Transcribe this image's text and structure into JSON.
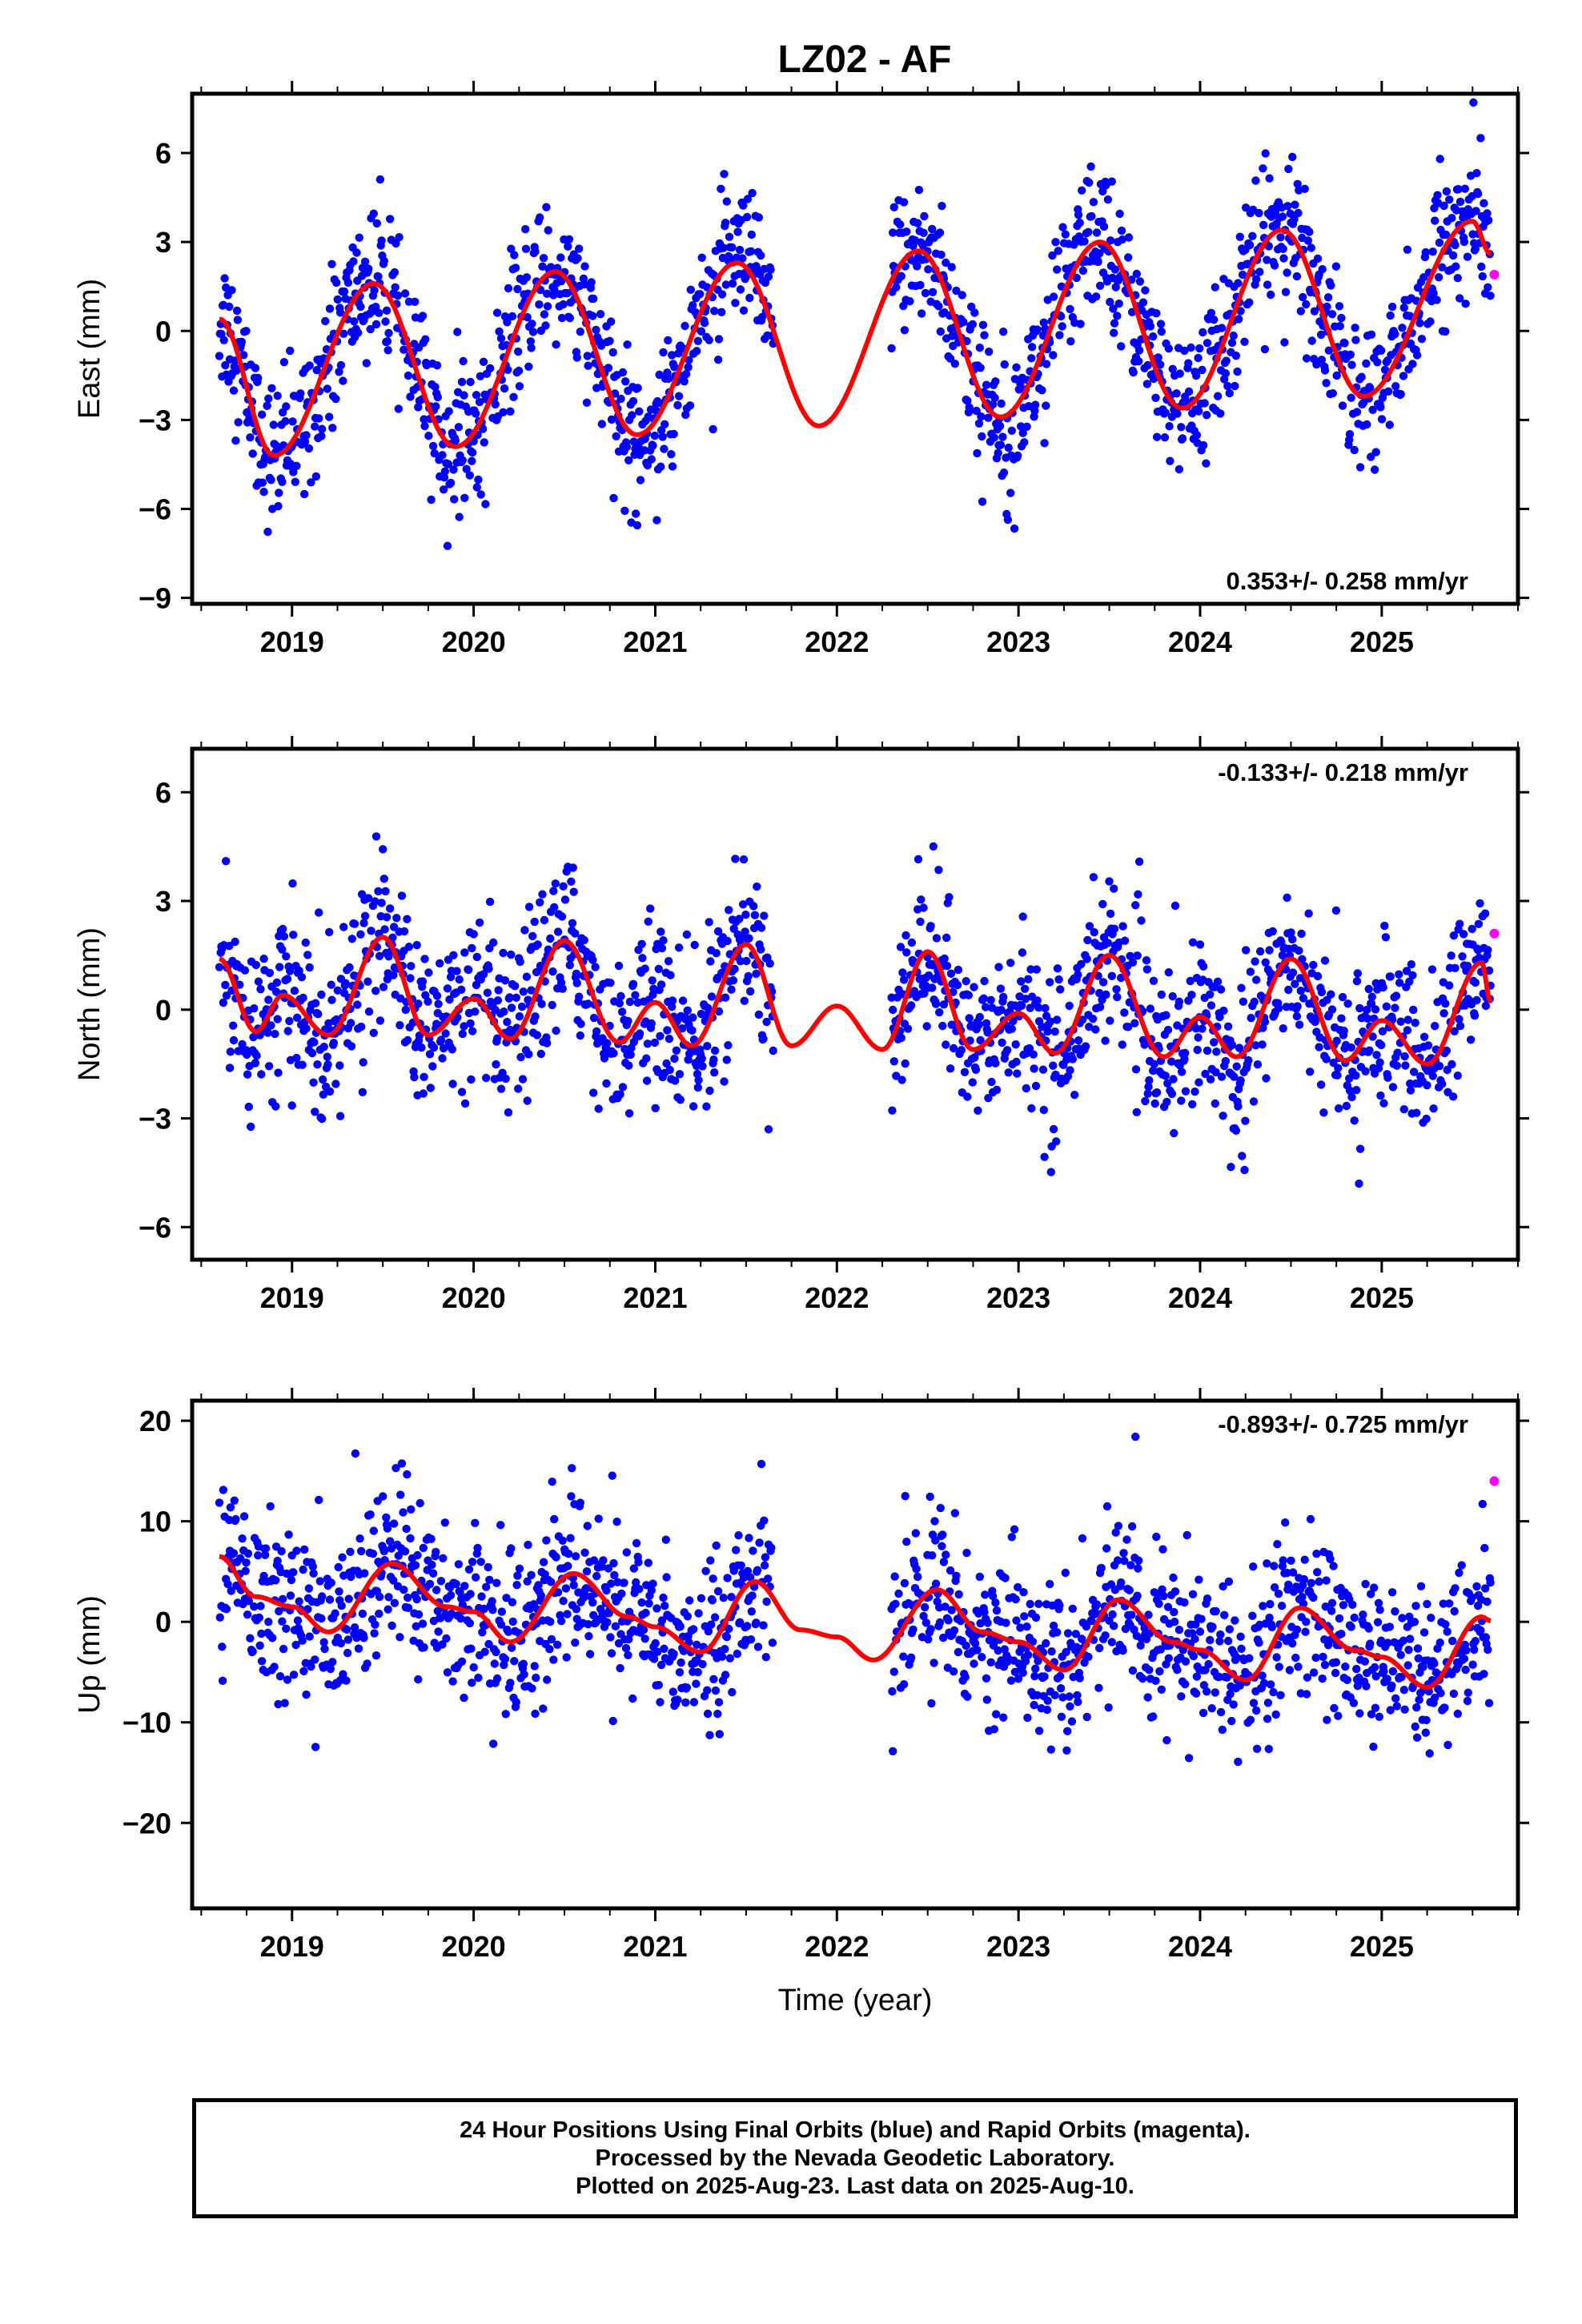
{
  "title": "LZ02 - AF",
  "colors": {
    "final": "#0000ff",
    "rapid": "#ff00ff",
    "fit": "#ff0000",
    "axis": "#000000"
  },
  "x_ticks": [
    "2019",
    "2020",
    "2021",
    "2022",
    "2023",
    "2024",
    "2025"
  ],
  "x_axis_label": "Time (year)",
  "caption": [
    "24 Hour Positions Using Final Orbits (blue) and Rapid Orbits (magenta).",
    "Processed by the Nevada Geodetic Laboratory.",
    "Plotted on 2025-Aug-23. Last data on 2025-Aug-10."
  ],
  "chart_data": [
    {
      "type": "scatter",
      "ylabel": "East (mm)",
      "rate": "0.353+/- 0.258 mm/yr",
      "rate_position": "bottom-right",
      "xlim": [
        2018.45,
        2025.75
      ],
      "ylim": [
        -9.2,
        8
      ],
      "yticks": [
        6,
        3,
        0,
        -3,
        -6,
        -9
      ],
      "fit": {
        "x": [
          2018.6,
          2018.9,
          2019.45,
          2019.9,
          2020.45,
          2020.9,
          2021.45,
          2021.9,
          2022.45,
          2022.9,
          2023.45,
          2023.9,
          2024.45,
          2024.9,
          2025.5,
          2025.6
        ],
        "y": [
          0.4,
          -4.2,
          1.6,
          -3.9,
          2.0,
          -3.5,
          2.3,
          -3.2,
          2.7,
          -2.9,
          3.0,
          -2.6,
          3.4,
          -2.2,
          3.7,
          2.6
        ]
      },
      "final_series": {
        "amplitude": 3.1,
        "phase_peak": 0.45,
        "noise": 1.2,
        "trend": 0.353
      },
      "gap": [
        2021.65,
        2022.3
      ],
      "rapid_points": [
        {
          "x": 2025.62,
          "y": 1.9
        }
      ]
    },
    {
      "type": "scatter",
      "ylabel": "North (mm)",
      "rate": "-0.133+/- 0.218 mm/yr",
      "rate_position": "top-right",
      "xlim": [
        2018.45,
        2025.75
      ],
      "ylim": [
        -6.9,
        7.2
      ],
      "yticks": [
        6,
        3,
        0,
        -3,
        -6
      ],
      "fit": {
        "x": [
          2018.6,
          2018.8,
          2018.95,
          2019.2,
          2019.5,
          2019.75,
          2020.0,
          2020.2,
          2020.5,
          2020.8,
          2021.0,
          2021.2,
          2021.5,
          2021.75,
          2022.0,
          2022.25,
          2022.5,
          2022.75,
          2023.0,
          2023.2,
          2023.5,
          2023.8,
          2024.0,
          2024.2,
          2024.5,
          2024.8,
          2025.0,
          2025.25,
          2025.55,
          2025.6
        ],
        "y": [
          1.4,
          -0.6,
          0.4,
          -0.7,
          2.0,
          -0.7,
          0.3,
          -0.8,
          1.9,
          -0.9,
          0.2,
          -1.0,
          1.8,
          -1.0,
          0.1,
          -1.1,
          1.6,
          -1.1,
          -0.1,
          -1.2,
          1.5,
          -1.3,
          -0.2,
          -1.3,
          1.4,
          -1.4,
          -0.3,
          -1.5,
          1.3,
          0.2
        ]
      },
      "final_series": {
        "amplitude": 1.5,
        "phase_peak": 0.5,
        "noise": 1.1,
        "trend": -0.133
      },
      "gap": [
        2021.65,
        2022.3
      ],
      "rapid_points": [
        {
          "x": 2025.62,
          "y": 2.1
        }
      ]
    },
    {
      "type": "scatter",
      "ylabel": "Up (mm)",
      "rate": "-0.893+/- 0.725 mm/yr",
      "rate_position": "top-right",
      "xlim": [
        2018.45,
        2025.75
      ],
      "ylim": [
        -28.5,
        22
      ],
      "yticks": [
        20,
        10,
        0,
        -10,
        -20
      ],
      "fit": {
        "x": [
          2018.6,
          2018.8,
          2019.0,
          2019.2,
          2019.55,
          2019.85,
          2020.0,
          2020.2,
          2020.55,
          2020.85,
          2021.0,
          2021.25,
          2021.55,
          2021.8,
          2022.0,
          2022.2,
          2022.55,
          2022.8,
          2023.0,
          2023.25,
          2023.55,
          2023.85,
          2024.0,
          2024.25,
          2024.55,
          2024.85,
          2025.0,
          2025.25,
          2025.55,
          2025.6
        ],
        "y": [
          6.5,
          2.5,
          1.5,
          -1.0,
          5.8,
          1.5,
          1.0,
          -2.0,
          4.8,
          0.5,
          -0.5,
          -3.0,
          4.0,
          -0.8,
          -1.5,
          -3.8,
          3.2,
          -1.0,
          -2.0,
          -4.8,
          2.2,
          -2.0,
          -2.8,
          -5.8,
          1.4,
          -2.8,
          -3.5,
          -6.5,
          0.5,
          0.1
        ]
      },
      "final_series": {
        "amplitude": 3.0,
        "phase_peak": 0.55,
        "noise": 4.0,
        "trend": -0.893
      },
      "gap": [
        2021.65,
        2022.3
      ],
      "rapid_points": [
        {
          "x": 2025.62,
          "y": 14.0
        }
      ]
    }
  ]
}
